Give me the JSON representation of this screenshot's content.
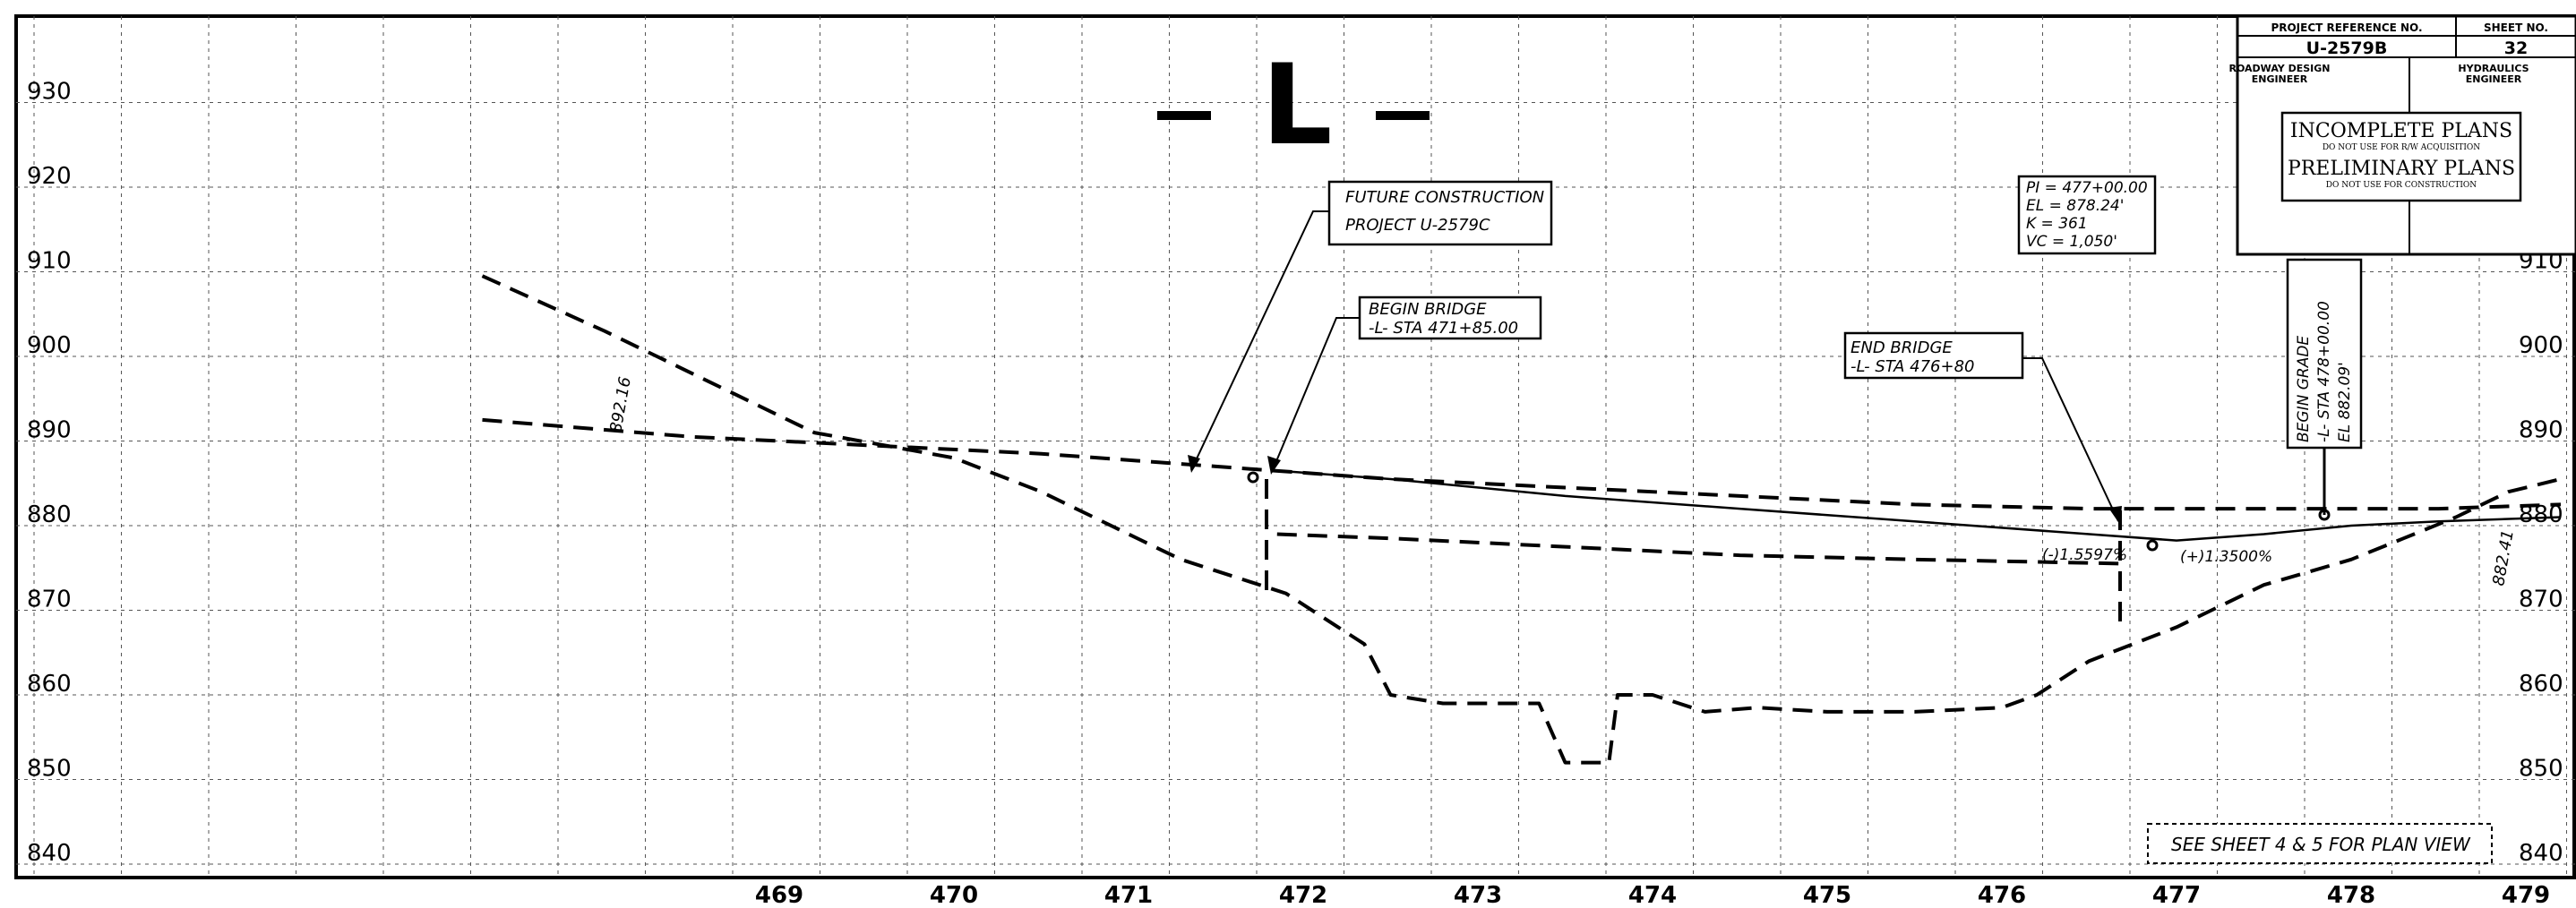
{
  "sheet_title": "- L -",
  "title_block": {
    "project_reference_label": "PROJECT REFERENCE NO.",
    "sheet_no_label": "SHEET NO.",
    "project_reference": "U-2579B",
    "sheet_no": "32",
    "roadway_design_engineer": [
      "ROADWAY DESIGN",
      "ENGINEER"
    ],
    "hydraulics_engineer": [
      "HYDRAULICS",
      "ENGINEER"
    ],
    "stamp_incomplete": "INCOMPLETE PLANS",
    "stamp_incomplete_sub": "DO NOT USE FOR R/W ACQUISITION",
    "stamp_preliminary": "PRELIMINARY PLANS",
    "stamp_preliminary_sub": "DO NOT USE FOR CONSTRUCTION"
  },
  "annotations": {
    "future_construction": [
      "FUTURE CONSTRUCTION",
      "PROJECT U-2579C"
    ],
    "begin_bridge": [
      "BEGIN BRIDGE",
      "-L- STA 471+85.00"
    ],
    "end_bridge": [
      "END BRIDGE",
      "-L- STA 476+80"
    ],
    "vertical_curve": [
      "PI = 477+00.00",
      "EL = 878.24'",
      "K = 361",
      "VC = 1,050'"
    ],
    "begin_grade": [
      "BEGIN GRADE",
      "-L- STA 478+00.00",
      "EL 882.09'"
    ],
    "elev_left": "892.16",
    "elev_right": "882.41",
    "grade_left": "(-)1.5597%",
    "grade_right": "(+)1.3500%",
    "see_sheet": "SEE SHEET 4 & 5 FOR PLAN VIEW"
  },
  "chart_data": {
    "type": "line",
    "xlabel": "",
    "ylabel": "",
    "x_ticks": [
      "469",
      "470",
      "471",
      "472",
      "473",
      "474",
      "475",
      "476",
      "477",
      "478",
      "479"
    ],
    "y_ticks": [
      "840",
      "850",
      "860",
      "870",
      "880",
      "890",
      "900",
      "910",
      "920",
      "930"
    ],
    "xlim": [
      464.8,
      479.5
    ],
    "ylim": [
      840,
      940
    ],
    "grid": true,
    "series": [
      {
        "style": "dashed",
        "points": [
          [
            467.3,
            909.5
          ],
          [
            468.0,
            903
          ],
          [
            468.6,
            897
          ],
          [
            469.2,
            891
          ],
          [
            470.0,
            888
          ],
          [
            470.5,
            884
          ],
          [
            471.0,
            879
          ],
          [
            471.3,
            876
          ],
          [
            471.6,
            874
          ],
          [
            471.9,
            872
          ],
          [
            472.2,
            868
          ],
          [
            472.35,
            866
          ],
          [
            472.5,
            860
          ],
          [
            472.8,
            859
          ],
          [
            473.2,
            859
          ],
          [
            473.35,
            859
          ],
          [
            473.5,
            852
          ],
          [
            473.75,
            852
          ],
          [
            473.8,
            860
          ],
          [
            474.0,
            860
          ],
          [
            474.3,
            858
          ],
          [
            474.6,
            858.5
          ],
          [
            475.0,
            858
          ],
          [
            475.5,
            858
          ],
          [
            476.0,
            858.5
          ],
          [
            476.2,
            860
          ],
          [
            476.5,
            864
          ],
          [
            477.0,
            868
          ],
          [
            477.5,
            873
          ],
          [
            478.0,
            876
          ],
          [
            478.3,
            878.5
          ],
          [
            478.6,
            881
          ],
          [
            478.9,
            884
          ],
          [
            479.2,
            885.5
          ]
        ]
      },
      {
        "style": "dashed",
        "points": [
          [
            467.3,
            892.5
          ],
          [
            468.5,
            890.5
          ],
          [
            469.5,
            889.5
          ],
          [
            470.5,
            888.5
          ],
          [
            471.5,
            887
          ],
          [
            472.5,
            885.5
          ],
          [
            473.5,
            884.5
          ],
          [
            474.5,
            883.5
          ],
          [
            475.5,
            882.5
          ],
          [
            476.5,
            882
          ],
          [
            477.5,
            882
          ],
          [
            478.5,
            882
          ],
          [
            479.2,
            882.5
          ]
        ]
      },
      {
        "style": "solid",
        "points": [
          [
            471.85,
            886.5
          ],
          [
            472.5,
            885.5
          ],
          [
            473.5,
            883.5
          ],
          [
            474.5,
            882
          ],
          [
            475.5,
            880.5
          ],
          [
            476.5,
            879
          ],
          [
            477.0,
            878.24
          ],
          [
            477.5,
            879
          ],
          [
            478.0,
            880
          ],
          [
            478.5,
            880.5
          ],
          [
            479.2,
            881
          ]
        ]
      },
      {
        "style": "dashed",
        "points": [
          [
            471.85,
            879
          ],
          [
            472.5,
            878.5
          ],
          [
            473.5,
            877.5
          ],
          [
            474.5,
            876.5
          ],
          [
            475.5,
            876
          ],
          [
            476.0,
            875.8
          ],
          [
            476.7,
            875.5
          ]
        ]
      }
    ]
  }
}
